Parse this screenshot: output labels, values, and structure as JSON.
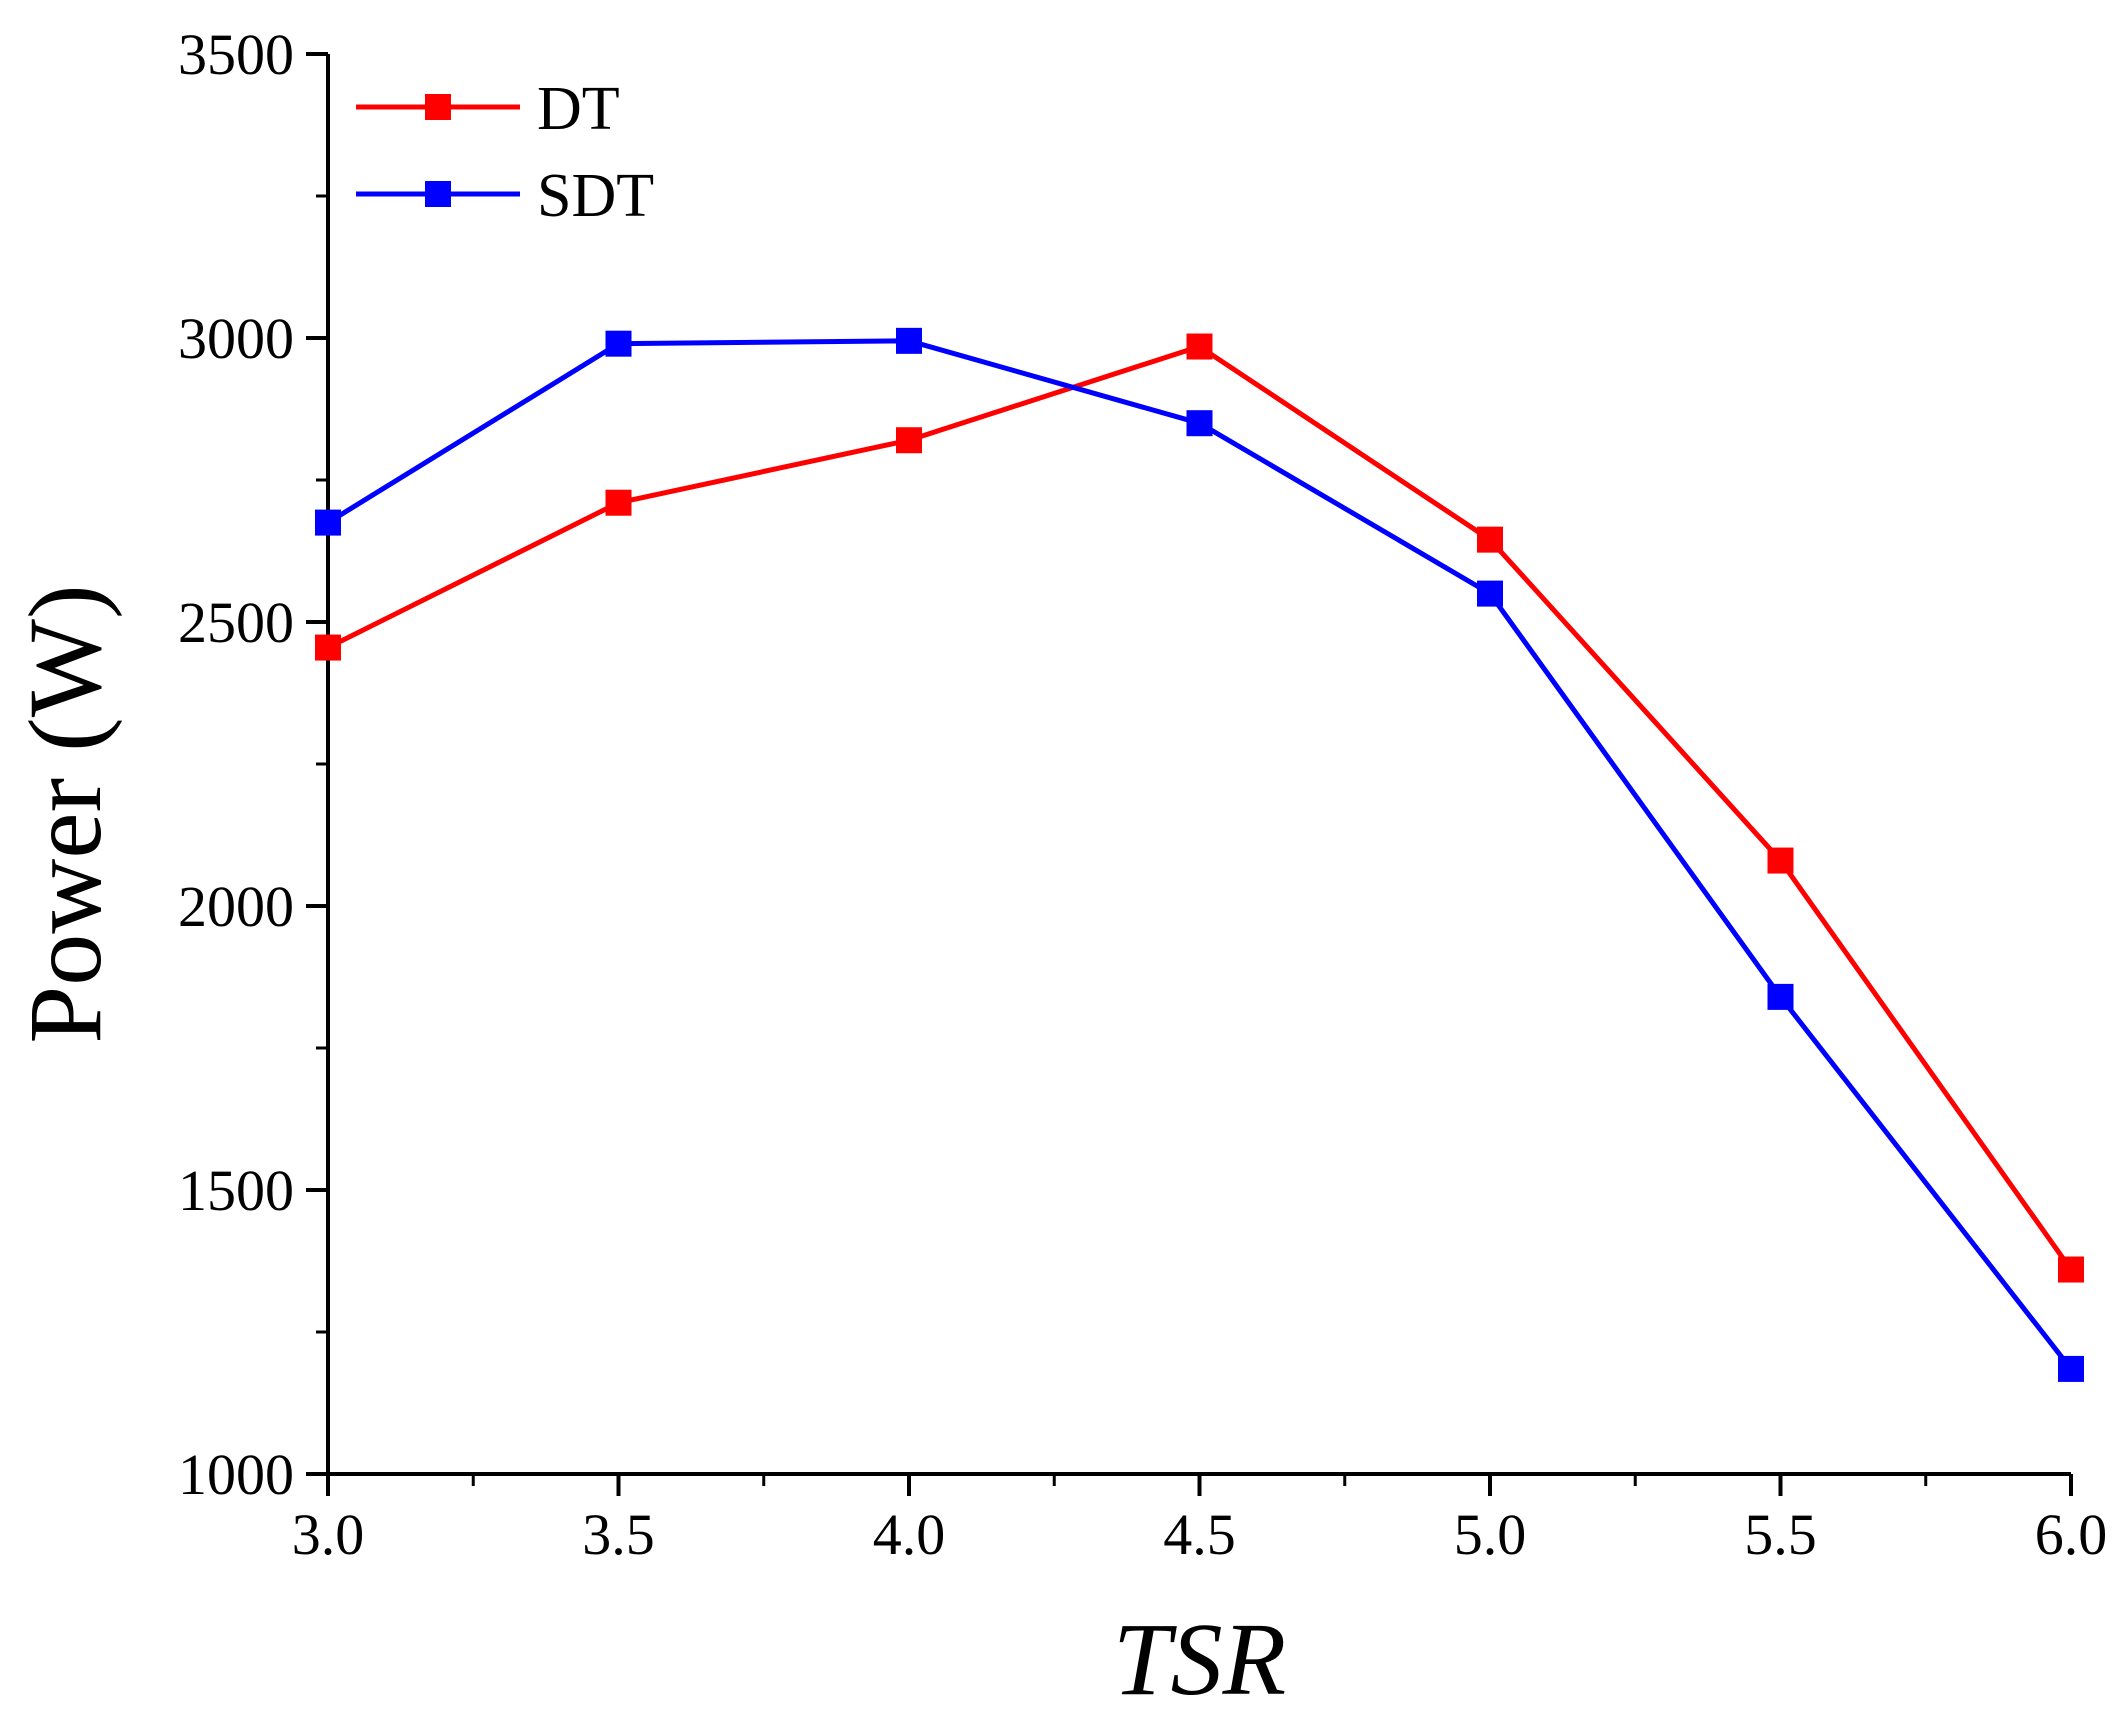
{
  "chart_data": {
    "type": "line",
    "title": "",
    "xlabel": "TSR",
    "ylabel": "Power (W)",
    "x": [
      3.0,
      3.5,
      4.0,
      4.5,
      5.0,
      5.5,
      6.0
    ],
    "xlim": [
      3.0,
      6.0
    ],
    "ylim": [
      1000,
      3500
    ],
    "xticks": [
      "3.0",
      "3.5",
      "4.0",
      "4.5",
      "5.0",
      "5.5",
      "6.0"
    ],
    "yticks": [
      "1000",
      "1500",
      "2000",
      "2500",
      "3000",
      "3500"
    ],
    "grid": false,
    "legend_position": "top-left",
    "series": [
      {
        "name": "DT",
        "color": "#ff0000",
        "marker": "square",
        "values": [
          2455,
          2710,
          2820,
          2985,
          2645,
          2080,
          1360
        ]
      },
      {
        "name": "SDT",
        "color": "#0000ff",
        "marker": "square",
        "values": [
          2675,
          2990,
          2995,
          2850,
          2550,
          1840,
          1185
        ]
      }
    ]
  }
}
